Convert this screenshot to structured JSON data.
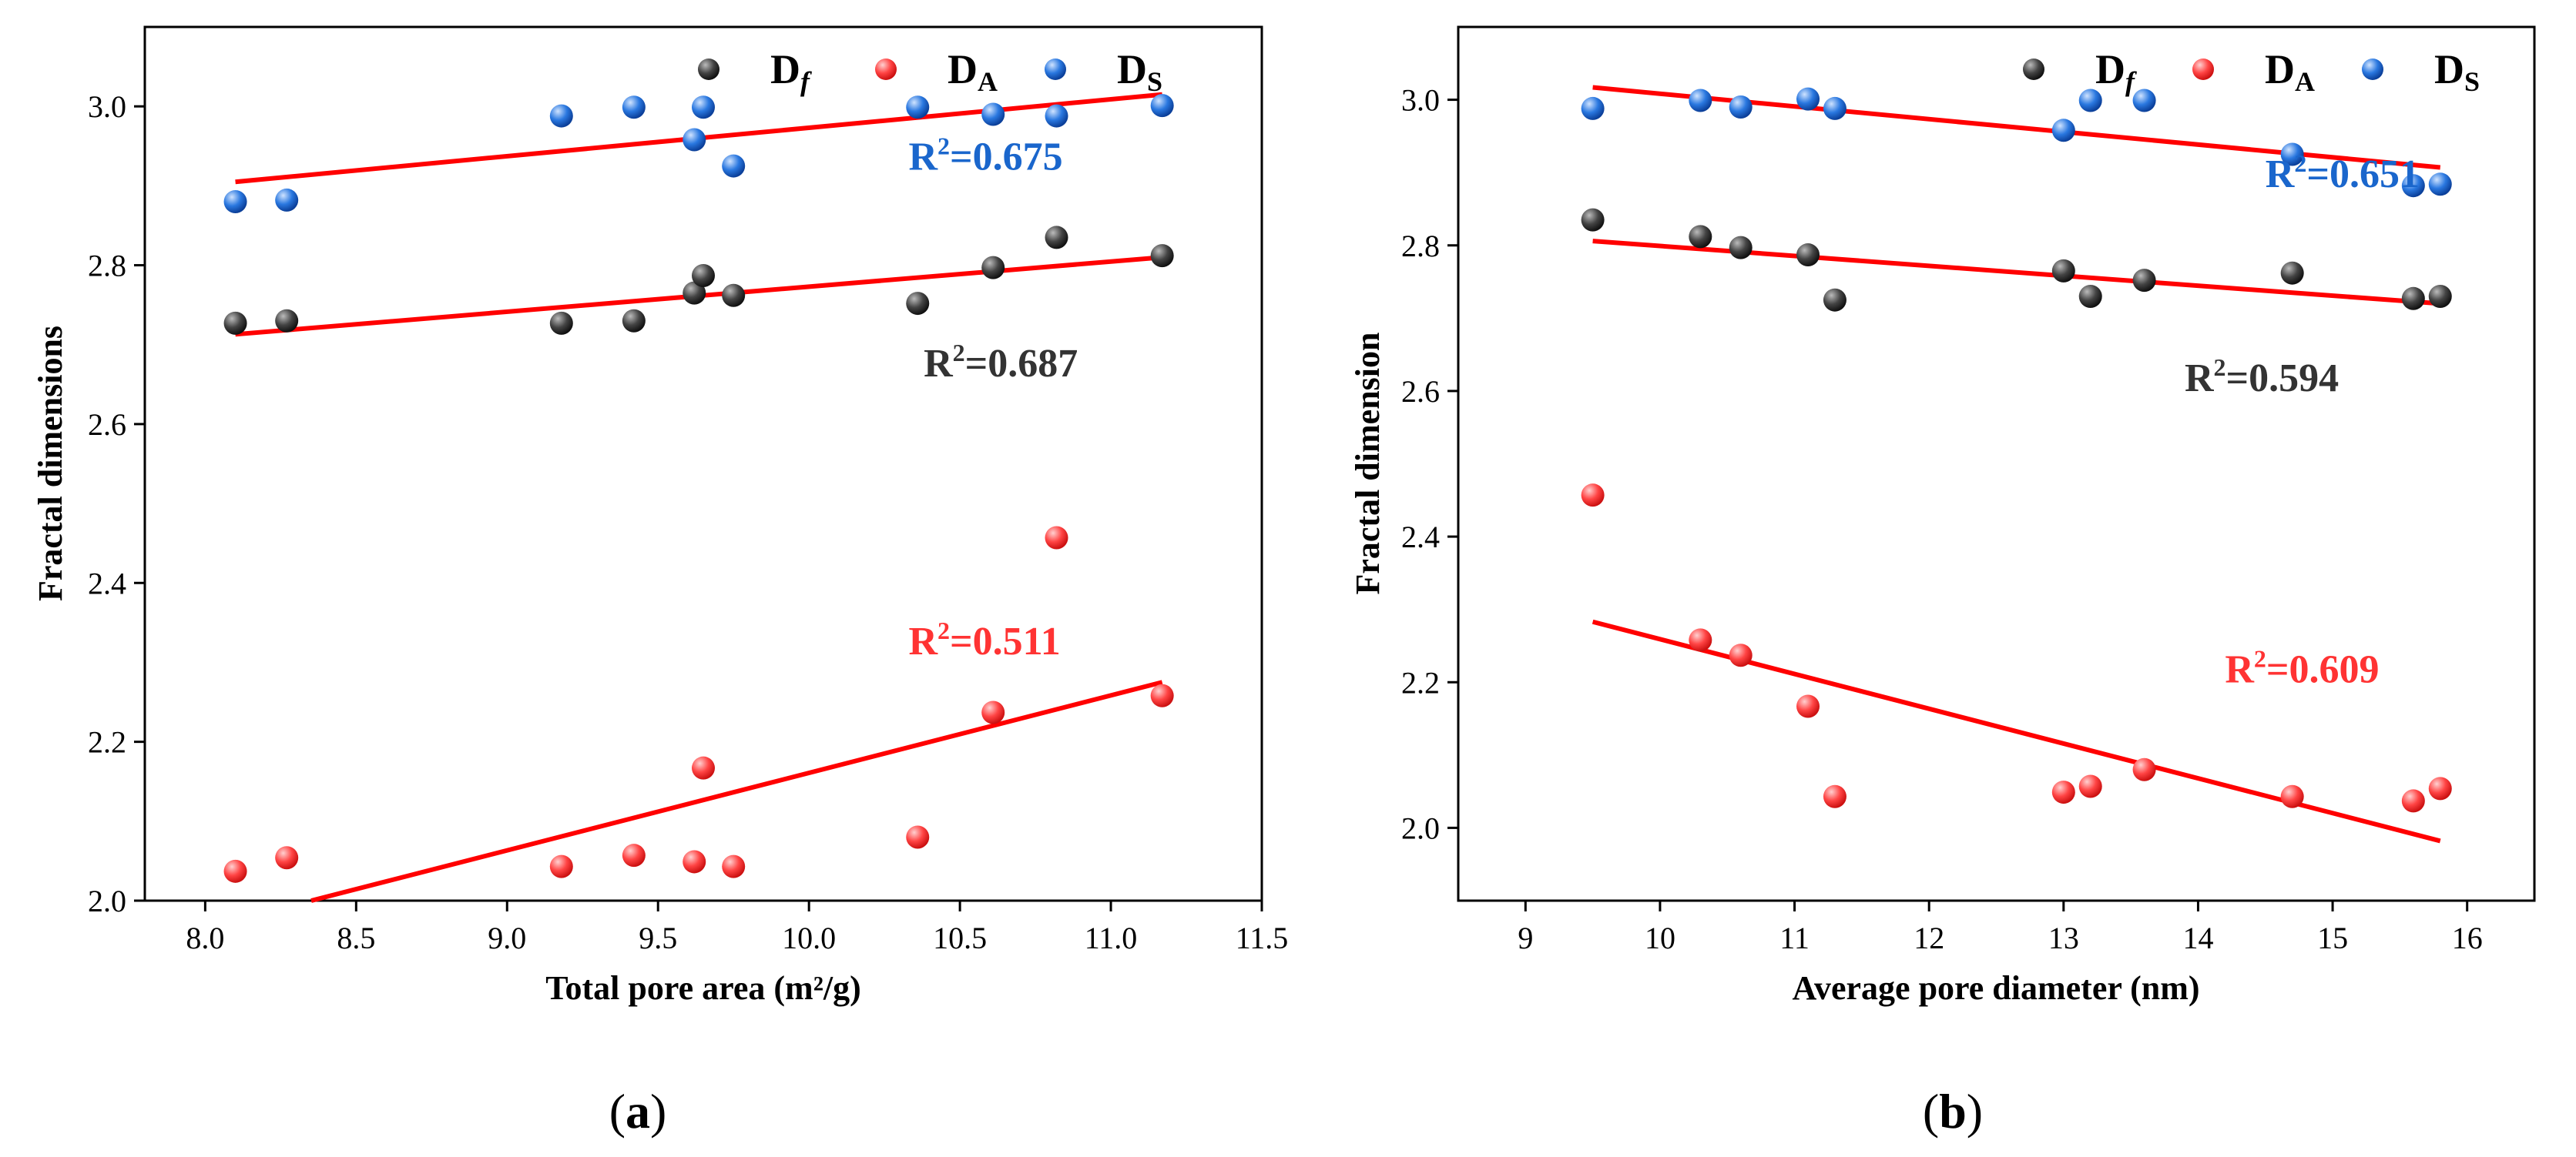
{
  "colors": {
    "Df": "#333333",
    "DA": "#ff3333",
    "DS": "#1a66cc",
    "fit": "#ff0000"
  },
  "legend": [
    {
      "key": "Df",
      "label": "D",
      "sub": "f",
      "italic_sub": true
    },
    {
      "key": "DA",
      "label": "D",
      "sub": "A",
      "italic_sub": false
    },
    {
      "key": "DS",
      "label": "D",
      "sub": "S",
      "italic_sub": false
    }
  ],
  "chart_data": [
    {
      "type": "scatter",
      "panel_label": "a",
      "xlabel": "Total pore area (m²/g)",
      "ylabel": "Fractal dimensions",
      "xlim": [
        7.8,
        11.5
      ],
      "ylim": [
        2.0,
        3.1
      ],
      "xticks": [
        "8.0",
        "8.5",
        "9.0",
        "9.5",
        "10.0",
        "10.5",
        "11.0",
        "11.5"
      ],
      "xtick_values": [
        8.0,
        8.5,
        9.0,
        9.5,
        10.0,
        10.5,
        11.0,
        11.5
      ],
      "yticks": [
        "2.0",
        "2.2",
        "2.4",
        "2.6",
        "2.8",
        "3.0"
      ],
      "ytick_values": [
        2.0,
        2.2,
        2.4,
        2.6,
        2.8,
        3.0
      ],
      "series": [
        {
          "name": "Df",
          "x": [
            8.1,
            8.27,
            9.18,
            9.42,
            9.62,
            9.65,
            9.75,
            10.36,
            10.61,
            10.82,
            11.17
          ],
          "y": [
            2.727,
            2.73,
            2.727,
            2.73,
            2.765,
            2.787,
            2.762,
            2.752,
            2.797,
            2.835,
            2.812
          ],
          "fit": {
            "x": [
              8.1,
              11.17
            ],
            "y": [
              2.713,
              2.81
            ]
          }
        },
        {
          "name": "DA",
          "x": [
            8.1,
            8.27,
            9.18,
            9.42,
            9.62,
            9.65,
            9.75,
            10.36,
            10.61,
            10.82,
            11.17
          ],
          "y": [
            2.037,
            2.054,
            2.043,
            2.057,
            2.049,
            2.167,
            2.043,
            2.08,
            2.237,
            2.457,
            2.258
          ],
          "fit": {
            "x": [
              8.3,
              11.17
            ],
            "y": [
              1.995,
              2.275
            ]
          }
        },
        {
          "name": "DS",
          "x": [
            8.1,
            8.27,
            9.18,
            9.42,
            9.62,
            9.65,
            9.75,
            10.36,
            10.61,
            10.82,
            11.17
          ],
          "y": [
            2.88,
            2.882,
            2.988,
            2.999,
            2.958,
            2.999,
            2.925,
            2.999,
            2.99,
            2.988,
            3.001
          ],
          "fit": {
            "x": [
              8.1,
              11.17
            ],
            "y": [
              2.905,
              3.015
            ]
          }
        }
      ],
      "annotations": [
        {
          "series": "DS",
          "text_pre": "R",
          "sup": "2",
          "text_post": "=0.675",
          "x": 10.33,
          "y": 2.92
        },
        {
          "series": "Df",
          "text_pre": "R",
          "sup": "2",
          "text_post": "=0.687",
          "x": 10.38,
          "y": 2.66
        },
        {
          "series": "DA",
          "text_pre": "R",
          "sup": "2",
          "text_post": "=0.511",
          "x": 10.33,
          "y": 2.31
        }
      ]
    },
    {
      "type": "scatter",
      "panel_label": "b",
      "xlabel": "Average pore diameter (nm)",
      "ylabel": "Fractal dimension",
      "xlim": [
        8.5,
        16.5
      ],
      "ylim": [
        1.9,
        3.1
      ],
      "xticks": [
        "9",
        "10",
        "11",
        "12",
        "13",
        "14",
        "15",
        "16"
      ],
      "xtick_values": [
        9,
        10,
        11,
        12,
        13,
        14,
        15,
        16
      ],
      "yticks": [
        "2.0",
        "2.2",
        "2.4",
        "2.6",
        "2.8",
        "3.0"
      ],
      "ytick_values": [
        2.0,
        2.2,
        2.4,
        2.6,
        2.8,
        3.0
      ],
      "series": [
        {
          "name": "Df",
          "x": [
            9.5,
            10.3,
            10.6,
            11.1,
            11.3,
            13.0,
            13.2,
            13.6,
            14.7,
            15.6,
            15.8
          ],
          "y": [
            2.835,
            2.812,
            2.797,
            2.787,
            2.725,
            2.765,
            2.73,
            2.752,
            2.762,
            2.727,
            2.73
          ],
          "fit": {
            "x": [
              9.5,
              15.8
            ],
            "y": [
              2.806,
              2.72
            ]
          }
        },
        {
          "name": "DA",
          "x": [
            9.5,
            10.3,
            10.6,
            11.1,
            11.3,
            13.0,
            13.2,
            13.6,
            14.7,
            15.6,
            15.8
          ],
          "y": [
            2.457,
            2.258,
            2.237,
            2.167,
            2.043,
            2.049,
            2.057,
            2.08,
            2.043,
            2.037,
            2.054
          ],
          "fit": {
            "x": [
              9.5,
              15.8
            ],
            "y": [
              2.283,
              1.982
            ]
          }
        },
        {
          "name": "DS",
          "x": [
            9.5,
            10.3,
            10.6,
            11.1,
            11.3,
            13.0,
            13.2,
            13.6,
            14.7,
            15.6,
            15.8
          ],
          "y": [
            2.988,
            2.999,
            2.99,
            3.001,
            2.988,
            2.958,
            2.999,
            2.999,
            2.925,
            2.882,
            2.884
          ],
          "fit": {
            "x": [
              9.5,
              15.8
            ],
            "y": [
              3.017,
              2.907
            ]
          }
        }
      ],
      "annotations": [
        {
          "series": "DS",
          "text_pre": "R",
          "sup": "2",
          "text_post": "=0.651",
          "x": 14.5,
          "y": 2.88
        },
        {
          "series": "Df",
          "text_pre": "R",
          "sup": "2",
          "text_post": "=0.594",
          "x": 13.9,
          "y": 2.6
        },
        {
          "series": "DA",
          "text_pre": "R",
          "sup": "2",
          "text_post": "=0.609",
          "x": 14.2,
          "y": 2.2
        }
      ]
    }
  ]
}
